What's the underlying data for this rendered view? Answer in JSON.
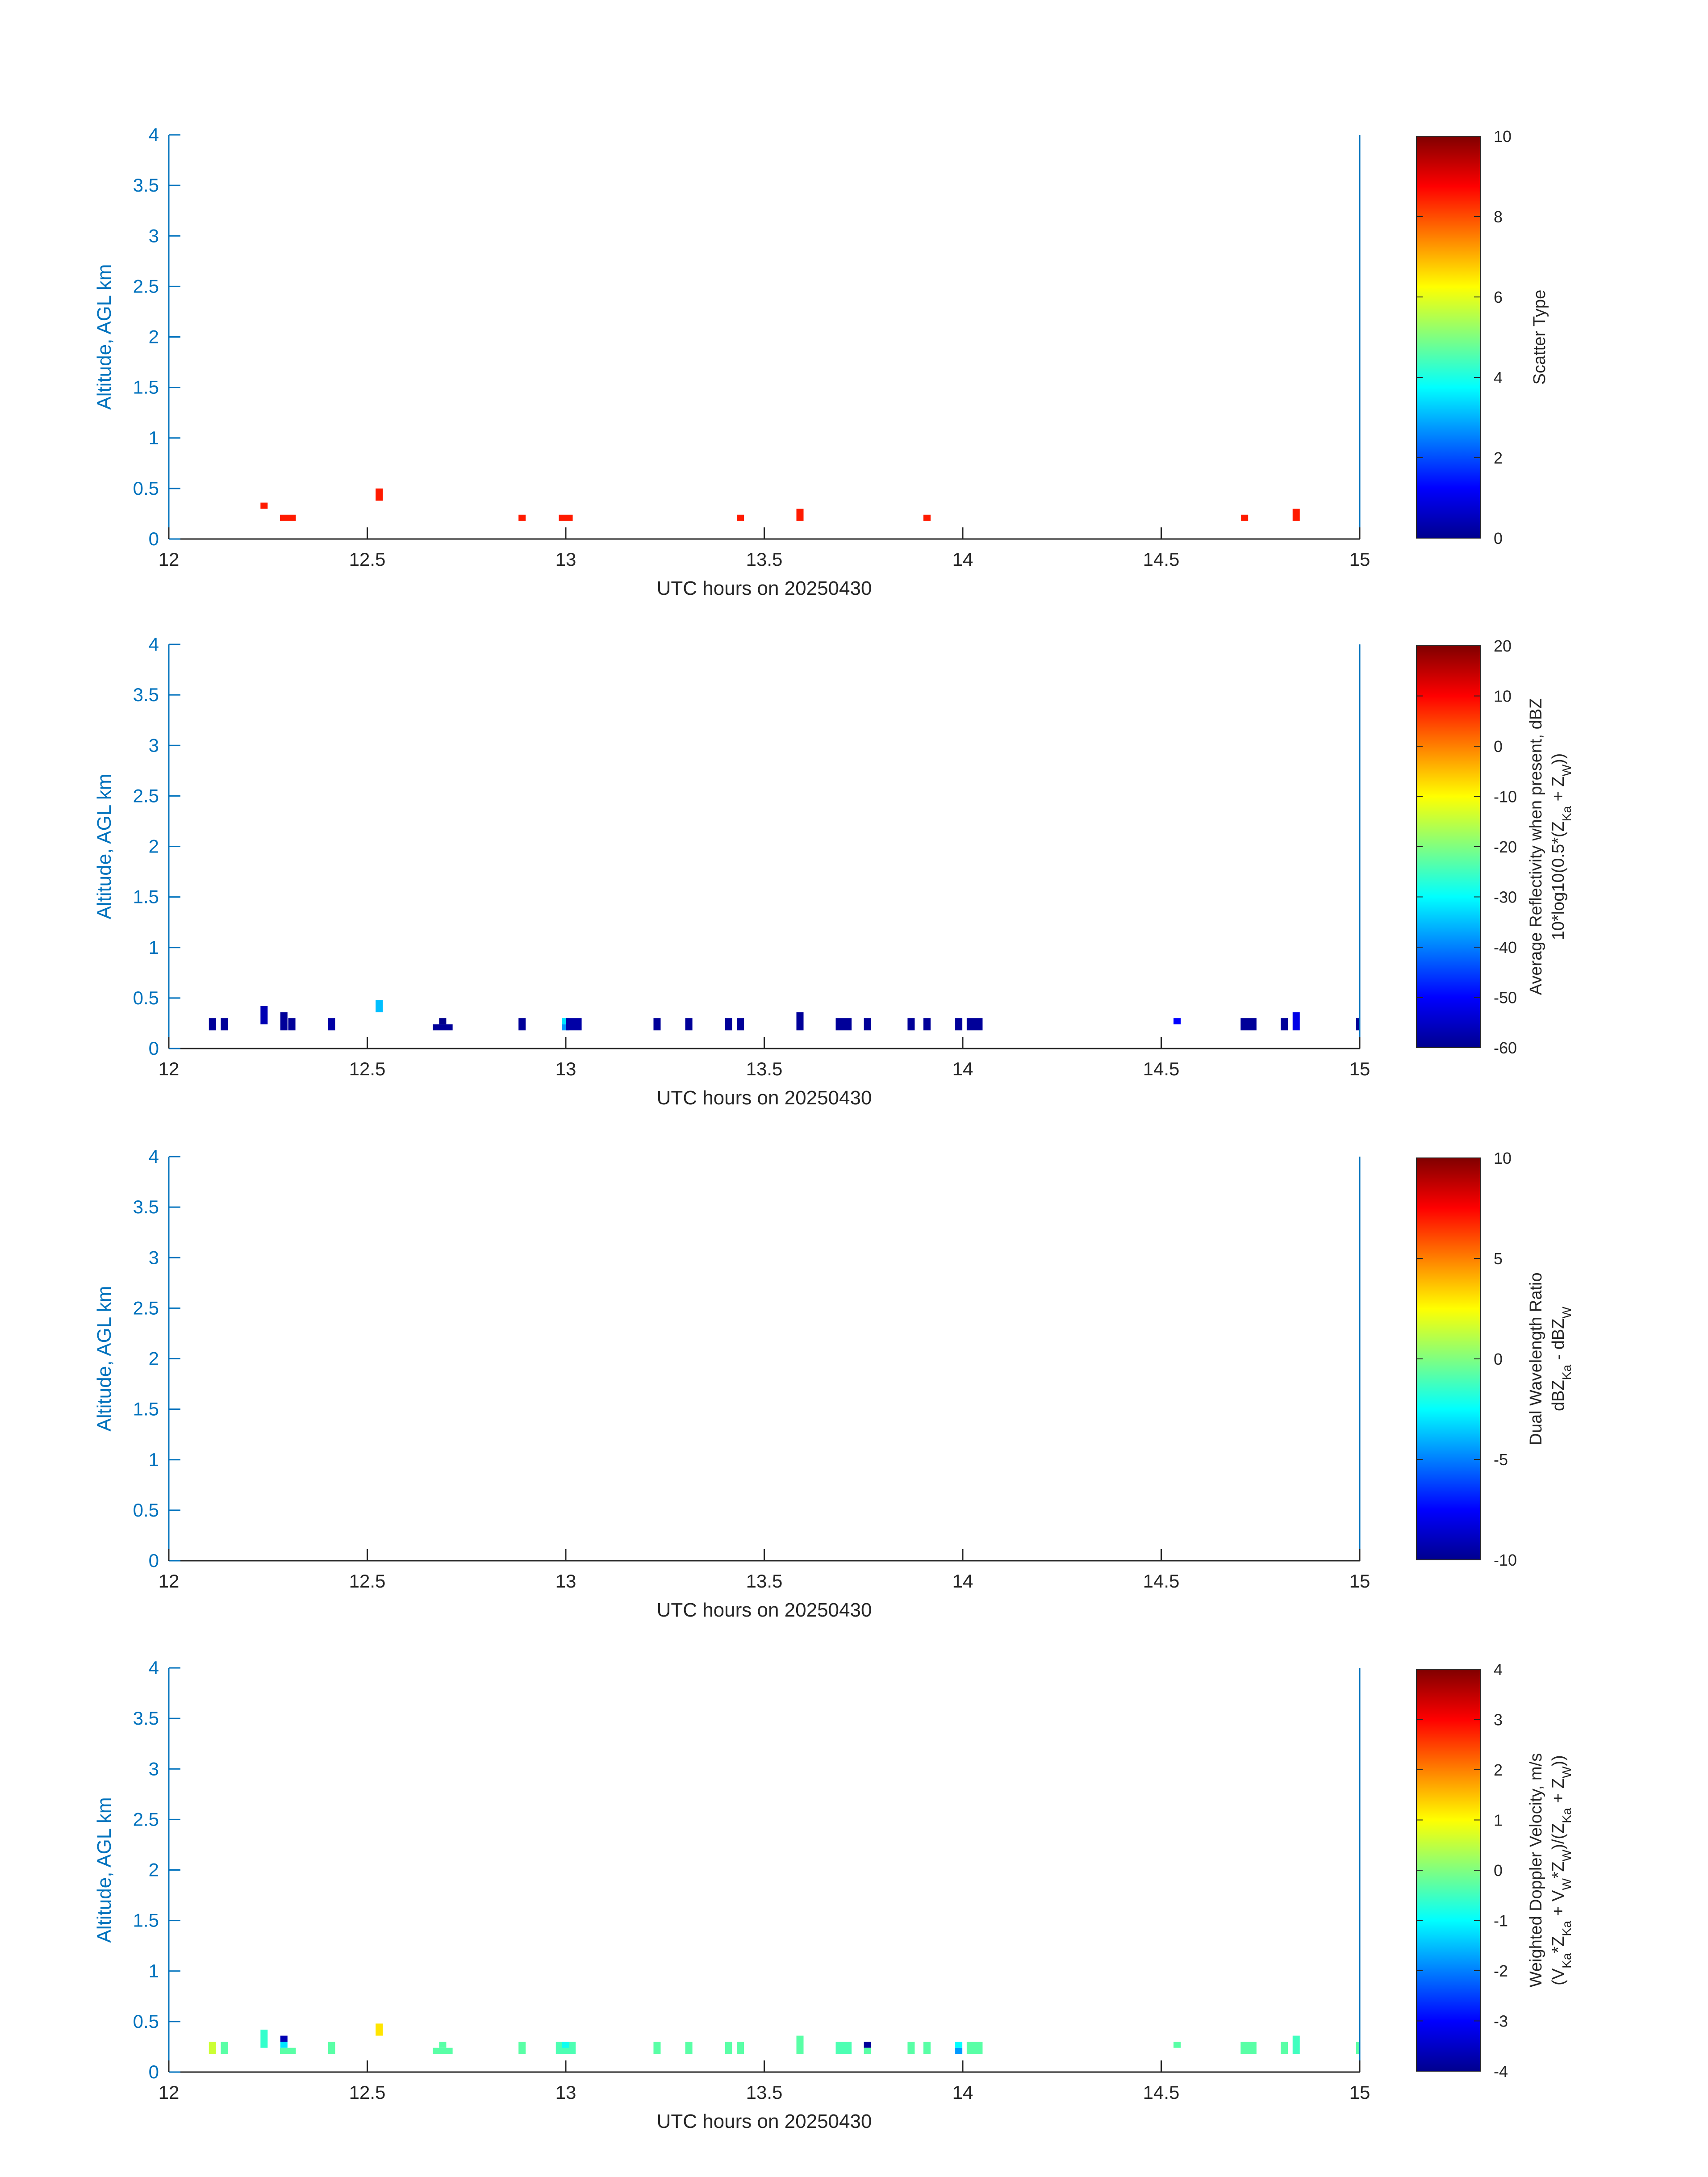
{
  "colors": {
    "axis": "#0072BD",
    "text": "#262626",
    "colormap": "jet"
  },
  "chart_data": [
    {
      "type": "heatmap",
      "title": "",
      "xlabel": "UTC hours on 20250430",
      "ylabel": "Altitude, AGL km",
      "xlim": [
        12,
        15
      ],
      "ylim": [
        0,
        4
      ],
      "xticks": [
        "12",
        "12.5",
        "13",
        "13.5",
        "14",
        "14.5",
        "15"
      ],
      "yticks": [
        "0",
        "0.5",
        "1",
        "1.5",
        "2",
        "2.5",
        "3",
        "3.5",
        "4"
      ],
      "colorbar": {
        "label_lines": [
          "Scatter Type"
        ],
        "range": [
          0,
          10
        ],
        "ticks": [
          "0",
          "2",
          "4",
          "6",
          "8",
          "10"
        ]
      },
      "cells": [
        {
          "x": 12.24,
          "y0": 0.3,
          "y1": 0.36,
          "v": 8.5
        },
        {
          "x": 12.3,
          "y0": 0.18,
          "y1": 0.24,
          "v": 8.5,
          "w": 0.04
        },
        {
          "x": 12.53,
          "y0": 0.38,
          "y1": 0.5,
          "v": 8.5
        },
        {
          "x": 12.89,
          "y0": 0.18,
          "y1": 0.24,
          "v": 8.5
        },
        {
          "x": 13.0,
          "y0": 0.18,
          "y1": 0.24,
          "v": 8.5,
          "w": 0.035
        },
        {
          "x": 13.44,
          "y0": 0.18,
          "y1": 0.24,
          "v": 8.5
        },
        {
          "x": 13.59,
          "y0": 0.18,
          "y1": 0.3,
          "v": 8.5
        },
        {
          "x": 13.91,
          "y0": 0.18,
          "y1": 0.24,
          "v": 8.5
        },
        {
          "x": 14.71,
          "y0": 0.18,
          "y1": 0.24,
          "v": 8.5
        },
        {
          "x": 14.84,
          "y0": 0.18,
          "y1": 0.3,
          "v": 8.5
        }
      ]
    },
    {
      "type": "heatmap",
      "title": "",
      "xlabel": "UTC hours on 20250430",
      "ylabel": "Altitude, AGL km",
      "xlim": [
        12,
        15
      ],
      "ylim": [
        0,
        4
      ],
      "xticks": [
        "12",
        "12.5",
        "13",
        "13.5",
        "14",
        "14.5",
        "15"
      ],
      "yticks": [
        "0",
        "0.5",
        "1",
        "1.5",
        "2",
        "2.5",
        "3",
        "3.5",
        "4"
      ],
      "colorbar": {
        "label_lines": [
          "Average Reflectivity when present, dBZ",
          "10*log10(0.5*(Z_Ka + Z_W))"
        ],
        "range": [
          -60,
          20
        ],
        "ticks": [
          "-60",
          "-50",
          "-40",
          "-30",
          "-20",
          "-10",
          "0",
          "10",
          "20"
        ]
      },
      "cells": [
        {
          "x": 12.11,
          "y0": 0.18,
          "y1": 0.3,
          "v": -58
        },
        {
          "x": 12.14,
          "y0": 0.18,
          "y1": 0.3,
          "v": -58
        },
        {
          "x": 12.24,
          "y0": 0.24,
          "y1": 0.42,
          "v": -56
        },
        {
          "x": 12.29,
          "y0": 0.18,
          "y1": 0.36,
          "v": -58
        },
        {
          "x": 12.31,
          "y0": 0.18,
          "y1": 0.3,
          "v": -58
        },
        {
          "x": 12.41,
          "y0": 0.18,
          "y1": 0.3,
          "v": -57
        },
        {
          "x": 12.53,
          "y0": 0.36,
          "y1": 0.48,
          "v": -35
        },
        {
          "x": 12.69,
          "y0": 0.18,
          "y1": 0.24,
          "v": -58,
          "w": 0.05
        },
        {
          "x": 12.69,
          "y0": 0.24,
          "y1": 0.3,
          "v": -59
        },
        {
          "x": 12.89,
          "y0": 0.18,
          "y1": 0.3,
          "v": -58
        },
        {
          "x": 13.0,
          "y0": 0.18,
          "y1": 0.24,
          "v": -38
        },
        {
          "x": 13.0,
          "y0": 0.24,
          "y1": 0.3,
          "v": -32
        },
        {
          "x": 13.02,
          "y0": 0.18,
          "y1": 0.3,
          "v": -57,
          "w": 0.04
        },
        {
          "x": 13.23,
          "y0": 0.18,
          "y1": 0.3,
          "v": -58
        },
        {
          "x": 13.31,
          "y0": 0.18,
          "y1": 0.3,
          "v": -58
        },
        {
          "x": 13.41,
          "y0": 0.18,
          "y1": 0.3,
          "v": -58
        },
        {
          "x": 13.44,
          "y0": 0.18,
          "y1": 0.3,
          "v": -58
        },
        {
          "x": 13.59,
          "y0": 0.18,
          "y1": 0.36,
          "v": -58
        },
        {
          "x": 13.7,
          "y0": 0.18,
          "y1": 0.3,
          "v": -58,
          "w": 0.04
        },
        {
          "x": 13.76,
          "y0": 0.18,
          "y1": 0.3,
          "v": -58
        },
        {
          "x": 13.87,
          "y0": 0.18,
          "y1": 0.3,
          "v": -58
        },
        {
          "x": 13.91,
          "y0": 0.18,
          "y1": 0.3,
          "v": -58
        },
        {
          "x": 13.99,
          "y0": 0.18,
          "y1": 0.3,
          "v": -58
        },
        {
          "x": 14.03,
          "y0": 0.18,
          "y1": 0.3,
          "v": -58,
          "w": 0.04
        },
        {
          "x": 14.54,
          "y0": 0.24,
          "y1": 0.3,
          "v": -50
        },
        {
          "x": 14.72,
          "y0": 0.18,
          "y1": 0.3,
          "v": -58,
          "w": 0.04
        },
        {
          "x": 14.81,
          "y0": 0.18,
          "y1": 0.3,
          "v": -58
        },
        {
          "x": 14.84,
          "y0": 0.18,
          "y1": 0.36,
          "v": -52
        },
        {
          "x": 15.0,
          "y0": 0.18,
          "y1": 0.3,
          "v": -58
        }
      ]
    },
    {
      "type": "heatmap",
      "title": "",
      "xlabel": "UTC hours on 20250430",
      "ylabel": "Altitude, AGL km",
      "xlim": [
        12,
        15
      ],
      "ylim": [
        0,
        4
      ],
      "xticks": [
        "12",
        "12.5",
        "13",
        "13.5",
        "14",
        "14.5",
        "15"
      ],
      "yticks": [
        "0",
        "0.5",
        "1",
        "1.5",
        "2",
        "2.5",
        "3",
        "3.5",
        "4"
      ],
      "colorbar": {
        "label_lines": [
          "Dual Wavelength Ratio",
          "dBZ_Ka - dBZ_W"
        ],
        "range": [
          -10,
          10
        ],
        "ticks": [
          "-10",
          "-5",
          "0",
          "5",
          "10"
        ]
      },
      "cells": []
    },
    {
      "type": "heatmap",
      "title": "",
      "xlabel": "UTC hours on 20250430",
      "ylabel": "Altitude, AGL km",
      "xlim": [
        12,
        15
      ],
      "ylim": [
        0,
        4
      ],
      "xticks": [
        "12",
        "12.5",
        "13",
        "13.5",
        "14",
        "14.5",
        "15"
      ],
      "yticks": [
        "0",
        "0.5",
        "1",
        "1.5",
        "2",
        "2.5",
        "3",
        "3.5",
        "4"
      ],
      "colorbar": {
        "label_lines": [
          "Weighted Doppler Velocity, m/s",
          "(V_Ka*Z_Ka + V_W*Z_W)/(Z_Ka + Z_W))"
        ],
        "range": [
          -4,
          4
        ],
        "ticks": [
          "-4",
          "-3",
          "-2",
          "-1",
          "0",
          "1",
          "2",
          "3",
          "4"
        ]
      },
      "cells": [
        {
          "x": 12.11,
          "y0": 0.18,
          "y1": 0.3,
          "v": 0.6
        },
        {
          "x": 12.14,
          "y0": 0.18,
          "y1": 0.3,
          "v": -0.3
        },
        {
          "x": 12.24,
          "y0": 0.24,
          "y1": 0.42,
          "v": -0.6
        },
        {
          "x": 12.29,
          "y0": 0.3,
          "y1": 0.36,
          "v": -3.6
        },
        {
          "x": 12.29,
          "y0": 0.24,
          "y1": 0.3,
          "v": -1.2
        },
        {
          "x": 12.3,
          "y0": 0.18,
          "y1": 0.24,
          "v": -0.3,
          "w": 0.04
        },
        {
          "x": 12.41,
          "y0": 0.18,
          "y1": 0.3,
          "v": -0.3
        },
        {
          "x": 12.53,
          "y0": 0.36,
          "y1": 0.48,
          "v": 1.2
        },
        {
          "x": 12.69,
          "y0": 0.18,
          "y1": 0.24,
          "v": -0.3,
          "w": 0.05
        },
        {
          "x": 12.69,
          "y0": 0.24,
          "y1": 0.3,
          "v": -0.3
        },
        {
          "x": 12.89,
          "y0": 0.18,
          "y1": 0.3,
          "v": -0.3
        },
        {
          "x": 13.0,
          "y0": 0.18,
          "y1": 0.3,
          "v": -0.4,
          "w": 0.05
        },
        {
          "x": 13.0,
          "y0": 0.24,
          "y1": 0.3,
          "v": -0.9
        },
        {
          "x": 13.23,
          "y0": 0.18,
          "y1": 0.3,
          "v": -0.3
        },
        {
          "x": 13.31,
          "y0": 0.18,
          "y1": 0.3,
          "v": -0.3
        },
        {
          "x": 13.41,
          "y0": 0.18,
          "y1": 0.3,
          "v": -0.3
        },
        {
          "x": 13.44,
          "y0": 0.18,
          "y1": 0.3,
          "v": -0.3
        },
        {
          "x": 13.59,
          "y0": 0.18,
          "y1": 0.36,
          "v": -0.3
        },
        {
          "x": 13.7,
          "y0": 0.18,
          "y1": 0.3,
          "v": -0.4,
          "w": 0.04
        },
        {
          "x": 13.76,
          "y0": 0.24,
          "y1": 0.3,
          "v": -3.8
        },
        {
          "x": 13.76,
          "y0": 0.18,
          "y1": 0.24,
          "v": -0.3
        },
        {
          "x": 13.87,
          "y0": 0.18,
          "y1": 0.3,
          "v": -0.3
        },
        {
          "x": 13.91,
          "y0": 0.18,
          "y1": 0.3,
          "v": -0.3
        },
        {
          "x": 13.99,
          "y0": 0.18,
          "y1": 0.24,
          "v": -1.8
        },
        {
          "x": 13.99,
          "y0": 0.24,
          "y1": 0.3,
          "v": -1.0
        },
        {
          "x": 14.03,
          "y0": 0.18,
          "y1": 0.3,
          "v": -0.3,
          "w": 0.04
        },
        {
          "x": 14.54,
          "y0": 0.24,
          "y1": 0.3,
          "v": -0.3
        },
        {
          "x": 14.72,
          "y0": 0.18,
          "y1": 0.3,
          "v": -0.3,
          "w": 0.04
        },
        {
          "x": 14.81,
          "y0": 0.18,
          "y1": 0.3,
          "v": -0.3
        },
        {
          "x": 14.84,
          "y0": 0.18,
          "y1": 0.36,
          "v": -0.5
        },
        {
          "x": 15.0,
          "y0": 0.18,
          "y1": 0.3,
          "v": -0.3
        }
      ]
    }
  ]
}
